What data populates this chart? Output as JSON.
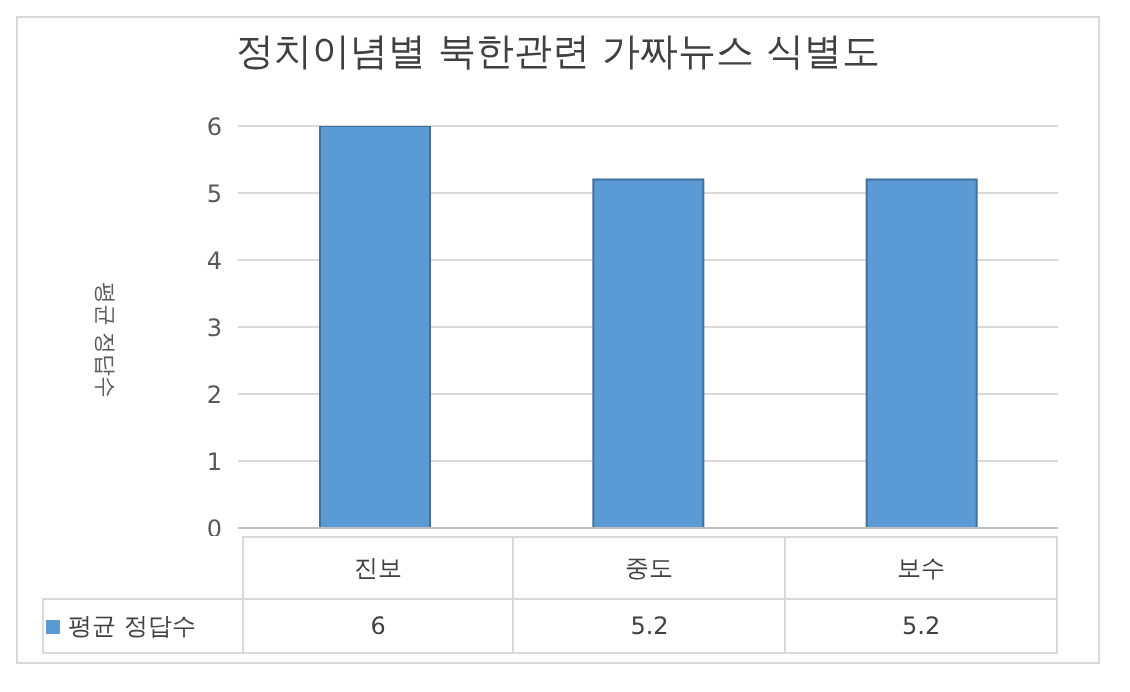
{
  "chart_data": {
    "type": "bar",
    "title": "정치이념별 북한관련 가짜뉴스 식별도",
    "ylabel": "평균 정답수",
    "categories": [
      "진보",
      "중도",
      "보수"
    ],
    "series": [
      {
        "name": "평균 정답수",
        "color": "#5b9bd5",
        "values": [
          6,
          5.2,
          5.2
        ]
      }
    ],
    "ylim": [
      0,
      6
    ],
    "yticks": [
      0,
      1,
      2,
      3,
      4,
      5,
      6
    ],
    "grid": "y",
    "legend": "bottom",
    "data_labels": true
  }
}
